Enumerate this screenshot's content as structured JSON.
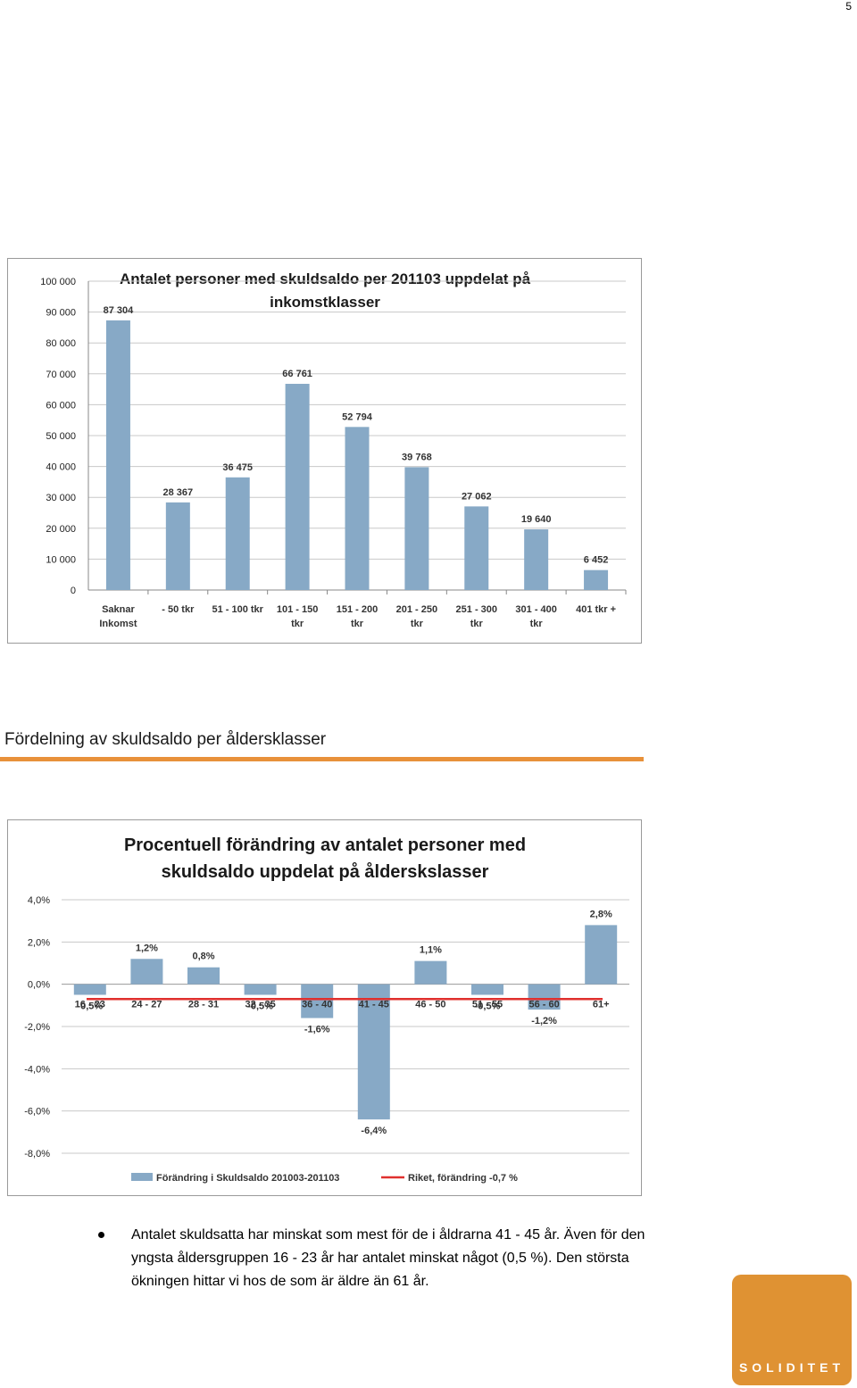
{
  "page": {
    "number": "5",
    "section_heading": "Fördelning av skuldsaldo per åldersklasser",
    "bullet_text": "Antalet skuldsatta har minskat som mest för de i åldrarna 41 - 45 år. Även för den yngsta åldersgruppen 16 - 23 år har antalet minskat något (0,5 %). Den största ökningen hittar vi hos de som är äldre än 61 år.",
    "logo_text": "SOLIDITET",
    "accent_color": "#e8913a",
    "logo_color": "#df9233"
  },
  "chart_data": [
    {
      "type": "bar",
      "title_lines": [
        "Antalet personer med skuldsaldo  per 201103 uppdelat på",
        "inkomstklasser"
      ],
      "categories": [
        [
          "Saknar",
          "Inkomst"
        ],
        [
          "- 50 tkr"
        ],
        [
          "51 - 100 tkr"
        ],
        [
          "101 - 150",
          "tkr"
        ],
        [
          "151 - 200",
          "tkr"
        ],
        [
          "201 - 250",
          "tkr"
        ],
        [
          "251 - 300",
          "tkr"
        ],
        [
          "301 - 400",
          "tkr"
        ],
        [
          "401 tkr +"
        ]
      ],
      "values": [
        87304,
        28367,
        36475,
        66761,
        52794,
        39768,
        27062,
        19640,
        6452
      ],
      "value_labels": [
        "87 304",
        "28 367",
        "36 475",
        "66 761",
        "52 794",
        "39 768",
        "27 062",
        "19 640",
        "6 452"
      ],
      "yticks": [
        "0",
        "10 000",
        "20 000",
        "30 000",
        "40 000",
        "50 000",
        "60 000",
        "70 000",
        "80 000",
        "90 000",
        "100 000"
      ],
      "ylim": [
        0,
        100000
      ],
      "grid": true,
      "bar_color": "#87a9c6"
    },
    {
      "type": "bar",
      "title_lines": [
        "Procentuell förändring av antalet personer med",
        "skuldsaldo uppdelat på ålderskslasser"
      ],
      "categories": [
        "16 - 23",
        "24 - 27",
        "28 - 31",
        "32 - 35",
        "36 - 40",
        "41 - 45",
        "46 - 50",
        "51 - 55",
        "56 - 60",
        "61+"
      ],
      "values": [
        -0.5,
        1.2,
        0.8,
        -0.5,
        -1.6,
        -6.4,
        1.1,
        -0.5,
        -1.2,
        2.8
      ],
      "value_labels": [
        "-0,5%",
        "1,2%",
        "0,8%",
        "-0,5%",
        "-1,6%",
        "-6,4%",
        "1,1%",
        "-0,5%",
        "-1,2%",
        "2,8%"
      ],
      "yticks": [
        "-8,0%",
        "-6,0%",
        "-4,0%",
        "-2,0%",
        "0,0%",
        "2,0%",
        "4,0%"
      ],
      "ylim": [
        -8,
        4
      ],
      "grid": true,
      "reference_line": {
        "value": -0.7,
        "color": "#e0302e"
      },
      "series": [
        {
          "name": "Förändring i Skuldsaldo 201003-201103",
          "color": "#87a9c6"
        },
        {
          "name": "Riket, förändring -0,7 %",
          "color": "#e0302e"
        }
      ],
      "legend_position": "bottom"
    }
  ]
}
